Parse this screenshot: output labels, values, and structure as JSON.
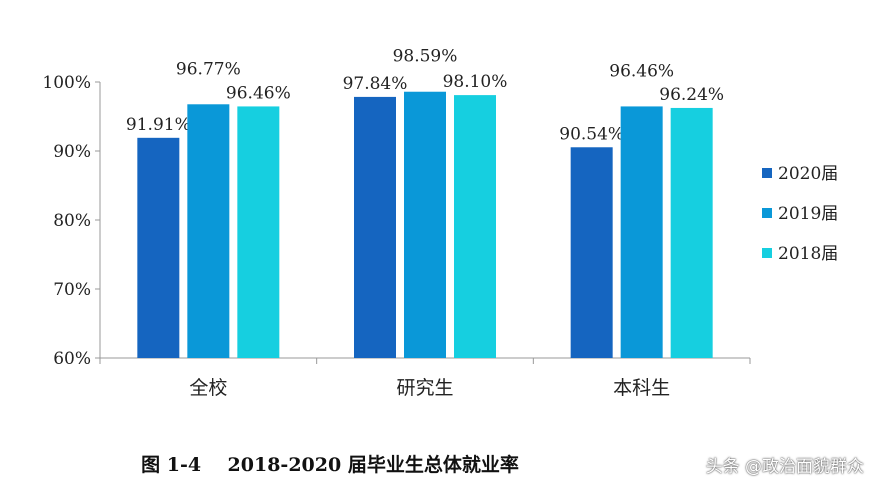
{
  "chart_data": {
    "type": "bar",
    "categories": [
      "全校",
      "研究生",
      "本科生"
    ],
    "series": [
      {
        "name": "2020届",
        "values": [
          91.91,
          97.84,
          90.54
        ],
        "labels": [
          "91.91%",
          "97.84%",
          "90.54%"
        ]
      },
      {
        "name": "2019届",
        "values": [
          96.77,
          98.59,
          96.46
        ],
        "labels": [
          "96.77%",
          "98.59%",
          "96.46%"
        ]
      },
      {
        "name": "2018届",
        "values": [
          96.46,
          98.1,
          96.24
        ],
        "labels": [
          "96.46%",
          "98.10%",
          "96.24%"
        ]
      }
    ],
    "ylim": [
      60,
      100
    ],
    "yticks": [
      60,
      70,
      80,
      90,
      100
    ],
    "ytick_labels": [
      "60%",
      "70%",
      "80%",
      "90%",
      "100%"
    ],
    "colors": [
      "#1565c0",
      "#0a98d8",
      "#16cfe0"
    ],
    "legend_position": "right",
    "grid": false
  },
  "caption": "图 1-4    2018-2020 届毕业生总体就业率",
  "watermark": "头条 @政治面貌群众"
}
